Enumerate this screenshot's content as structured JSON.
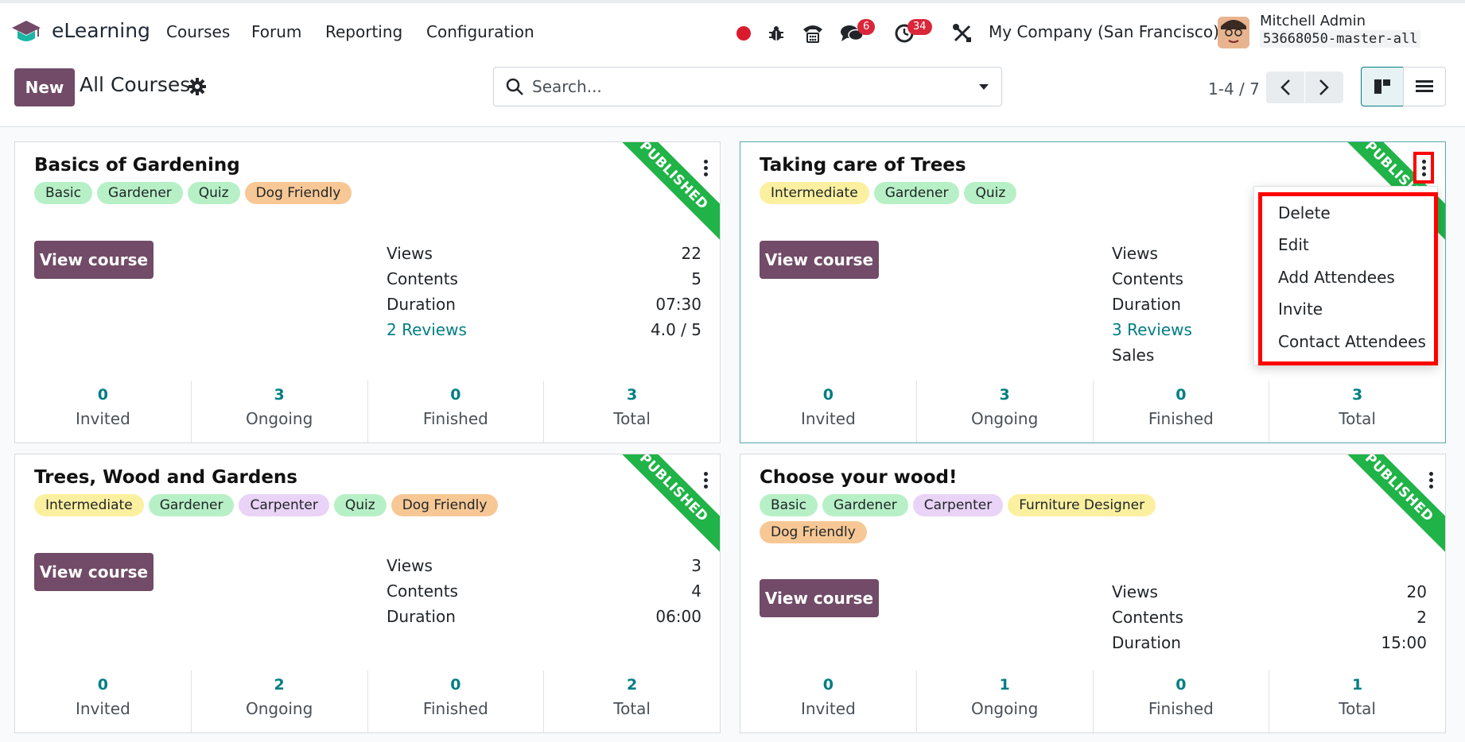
{
  "navbar": {
    "app_name": "eLearning",
    "menus": [
      "Courses",
      "Forum",
      "Reporting",
      "Configuration"
    ],
    "messages_badge": "6",
    "activities_badge": "34",
    "company": "My Company (San Francisco)",
    "user_name": "Mitchell Admin",
    "database": "53668050-master-all"
  },
  "control": {
    "new_label": "New",
    "title": "All Courses",
    "search_placeholder": "Search...",
    "pager": "1-4 / 7"
  },
  "cards": [
    {
      "title": "Basics of Gardening",
      "tags": [
        {
          "label": "Basic",
          "color": "green"
        },
        {
          "label": "Gardener",
          "color": "green"
        },
        {
          "label": "Quiz",
          "color": "green"
        },
        {
          "label": "Dog Friendly",
          "color": "orange"
        }
      ],
      "ribbon": "PUBLISHED",
      "button": "View course",
      "stats": [
        {
          "label": "Views",
          "value": "22"
        },
        {
          "label": "Contents",
          "value": "5"
        },
        {
          "label": "Duration",
          "value": "07:30"
        },
        {
          "label": "2 Reviews",
          "value": "4.0 / 5"
        }
      ],
      "counters": [
        {
          "num": "0",
          "cap": "Invited"
        },
        {
          "num": "3",
          "cap": "Ongoing"
        },
        {
          "num": "0",
          "cap": "Finished"
        },
        {
          "num": "3",
          "cap": "Total"
        }
      ]
    },
    {
      "title": "Taking care of Trees",
      "tags": [
        {
          "label": "Intermediate",
          "color": "yellow"
        },
        {
          "label": "Gardener",
          "color": "green"
        },
        {
          "label": "Quiz",
          "color": "green"
        }
      ],
      "ribbon": "PUBLISHED",
      "button": "View course",
      "stats": [
        {
          "label": "Views",
          "value": ""
        },
        {
          "label": "Contents",
          "value": ""
        },
        {
          "label": "Duration",
          "value": ""
        },
        {
          "label": "3 Reviews",
          "value": ""
        },
        {
          "label": "Sales",
          "value": ""
        }
      ],
      "counters": [
        {
          "num": "0",
          "cap": "Invited"
        },
        {
          "num": "3",
          "cap": "Ongoing"
        },
        {
          "num": "0",
          "cap": "Finished"
        },
        {
          "num": "3",
          "cap": "Total"
        }
      ]
    },
    {
      "title": "Trees, Wood and Gardens",
      "tags": [
        {
          "label": "Intermediate",
          "color": "yellow"
        },
        {
          "label": "Gardener",
          "color": "green"
        },
        {
          "label": "Carpenter",
          "color": "purple"
        },
        {
          "label": "Quiz",
          "color": "green"
        },
        {
          "label": "Dog Friendly",
          "color": "orange"
        }
      ],
      "ribbon": "PUBLISHED",
      "button": "View course",
      "stats": [
        {
          "label": "Views",
          "value": "3"
        },
        {
          "label": "Contents",
          "value": "4"
        },
        {
          "label": "Duration",
          "value": "06:00"
        }
      ],
      "counters": [
        {
          "num": "0",
          "cap": "Invited"
        },
        {
          "num": "2",
          "cap": "Ongoing"
        },
        {
          "num": "0",
          "cap": "Finished"
        },
        {
          "num": "2",
          "cap": "Total"
        }
      ]
    },
    {
      "title": "Choose your wood!",
      "tags": [
        {
          "label": "Basic",
          "color": "green"
        },
        {
          "label": "Gardener",
          "color": "green"
        },
        {
          "label": "Carpenter",
          "color": "purple"
        },
        {
          "label": "Furniture Designer",
          "color": "yellow"
        },
        {
          "label": "Dog Friendly",
          "color": "orange"
        }
      ],
      "ribbon": "PUBLISHED",
      "button": "View course",
      "stats": [
        {
          "label": "Views",
          "value": "20"
        },
        {
          "label": "Contents",
          "value": "2"
        },
        {
          "label": "Duration",
          "value": "15:00"
        }
      ],
      "counters": [
        {
          "num": "0",
          "cap": "Invited"
        },
        {
          "num": "1",
          "cap": "Ongoing"
        },
        {
          "num": "0",
          "cap": "Finished"
        },
        {
          "num": "1",
          "cap": "Total"
        }
      ]
    }
  ],
  "dropdown": {
    "items": [
      "Delete",
      "Edit",
      "Add Attendees",
      "Invite",
      "Contact Attendees"
    ]
  }
}
